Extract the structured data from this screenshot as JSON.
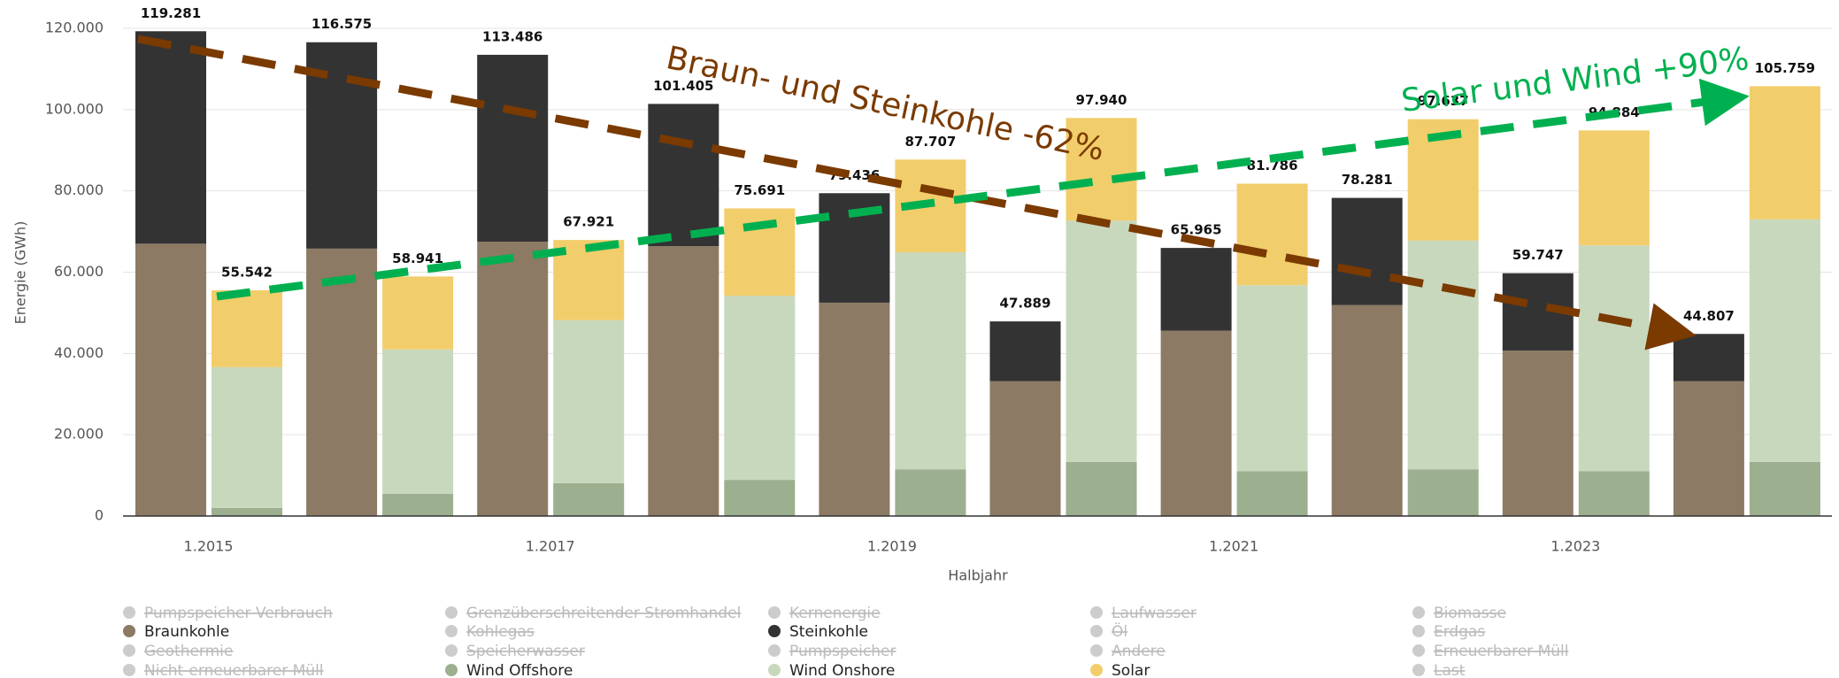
{
  "chart_data": {
    "type": "stacked_bar",
    "xlabel": "Halbjahr",
    "ylabel": "Energie (GWh)",
    "categories": [
      "1.2015",
      null,
      "1.2017",
      null,
      "1.2019",
      null,
      "1.2021",
      null,
      "1.2023",
      null
    ],
    "ylim": [
      0,
      120000
    ],
    "yticks": [
      0,
      {
        "value": 20000,
        "label": "20.000"
      },
      {
        "value": 40000,
        "label": "40.000"
      },
      {
        "value": 60000,
        "label": "60.000"
      },
      {
        "value": 80000,
        "label": "80.000"
      },
      {
        "value": 100000,
        "label": "100.000"
      },
      {
        "value": 120000,
        "label": "120.000"
      }
    ],
    "grid": true,
    "series": [
      {
        "name": "Pumpspeicher Verbrauch",
        "color": "#cccccc",
        "visible": false
      },
      {
        "name": "Grenzüberschreitender Stromhandel",
        "color": "#cccccc",
        "visible": false
      },
      {
        "name": "Kernenergie",
        "color": "#cccccc",
        "visible": false
      },
      {
        "name": "Laufwasser",
        "color": "#cccccc",
        "visible": false
      },
      {
        "name": "Biomasse",
        "color": "#cccccc",
        "visible": false
      },
      {
        "name": "Braunkohle",
        "color": "#8c7a64",
        "visible": true,
        "stack": 0,
        "values": [
          67000,
          65800,
          67500,
          66400,
          52500,
          33200,
          45600,
          51900,
          40700,
          33200
        ]
      },
      {
        "name": "Kohlegas",
        "color": "#cccccc",
        "visible": false
      },
      {
        "name": "Steinkohle",
        "color": "#333333",
        "visible": true,
        "stack": 0,
        "values": [
          52281,
          50775,
          45986,
          35005,
          26936,
          14689,
          20365,
          26381,
          19047,
          11607
        ]
      },
      {
        "name": "Öl",
        "color": "#cccccc",
        "visible": false
      },
      {
        "name": "Erdgas",
        "color": "#cccccc",
        "visible": false
      },
      {
        "name": "Geothermie",
        "color": "#cccccc",
        "visible": false
      },
      {
        "name": "Speicherwasser",
        "color": "#cccccc",
        "visible": false
      },
      {
        "name": "Pumpspeicher",
        "color": "#cccccc",
        "visible": false
      },
      {
        "name": "Andere",
        "color": "#cccccc",
        "visible": false
      },
      {
        "name": "Erneuerbarer Müll",
        "color": "#cccccc",
        "visible": false
      },
      {
        "name": "Nicht-erneuerbarer Müll",
        "color": "#cccccc",
        "visible": false
      },
      {
        "name": "Wind Offshore",
        "color": "#9caf8f",
        "visible": true,
        "stack": 1,
        "values": [
          2000,
          5500,
          8100,
          8900,
          11500,
          13300,
          11000,
          11500,
          11000,
          13300
        ]
      },
      {
        "name": "Wind Onshore",
        "color": "#c8d8bc",
        "visible": true,
        "stack": 1,
        "values": [
          34640,
          35500,
          40100,
          45300,
          53400,
          59400,
          45800,
          56300,
          55600,
          59700
        ]
      },
      {
        "name": "Solar",
        "color": "#f2cd6b",
        "visible": true,
        "stack": 1,
        "values": [
          18902,
          17941,
          19721,
          21491,
          22807,
          25240,
          24986,
          29837,
          28284,
          32759
        ]
      },
      {
        "name": "Last",
        "color": "#cccccc",
        "visible": false
      }
    ],
    "totals": [
      {
        "values": [
          119281,
          116575,
          113486,
          101405,
          79436,
          47889,
          65965,
          78281,
          59747,
          44807
        ],
        "value_labels": [
          "119.281",
          "116.575",
          "113.486",
          "101.405",
          "79.436",
          "47.889",
          "65.965",
          "78.281",
          "59.747",
          "44.807"
        ]
      },
      {
        "values": [
          55542,
          58941,
          67921,
          75691,
          87707,
          97940,
          81786,
          97637,
          94884,
          105759
        ],
        "value_labels": [
          "55.542",
          "58.941",
          "67.921",
          "75.691",
          "87.707",
          "97.940",
          "81.786",
          "97.637",
          "94.884",
          "105.759"
        ]
      }
    ],
    "annotations": [
      "Braun- und Steinkohle -62%",
      "Solar und Wind +90%"
    ]
  }
}
